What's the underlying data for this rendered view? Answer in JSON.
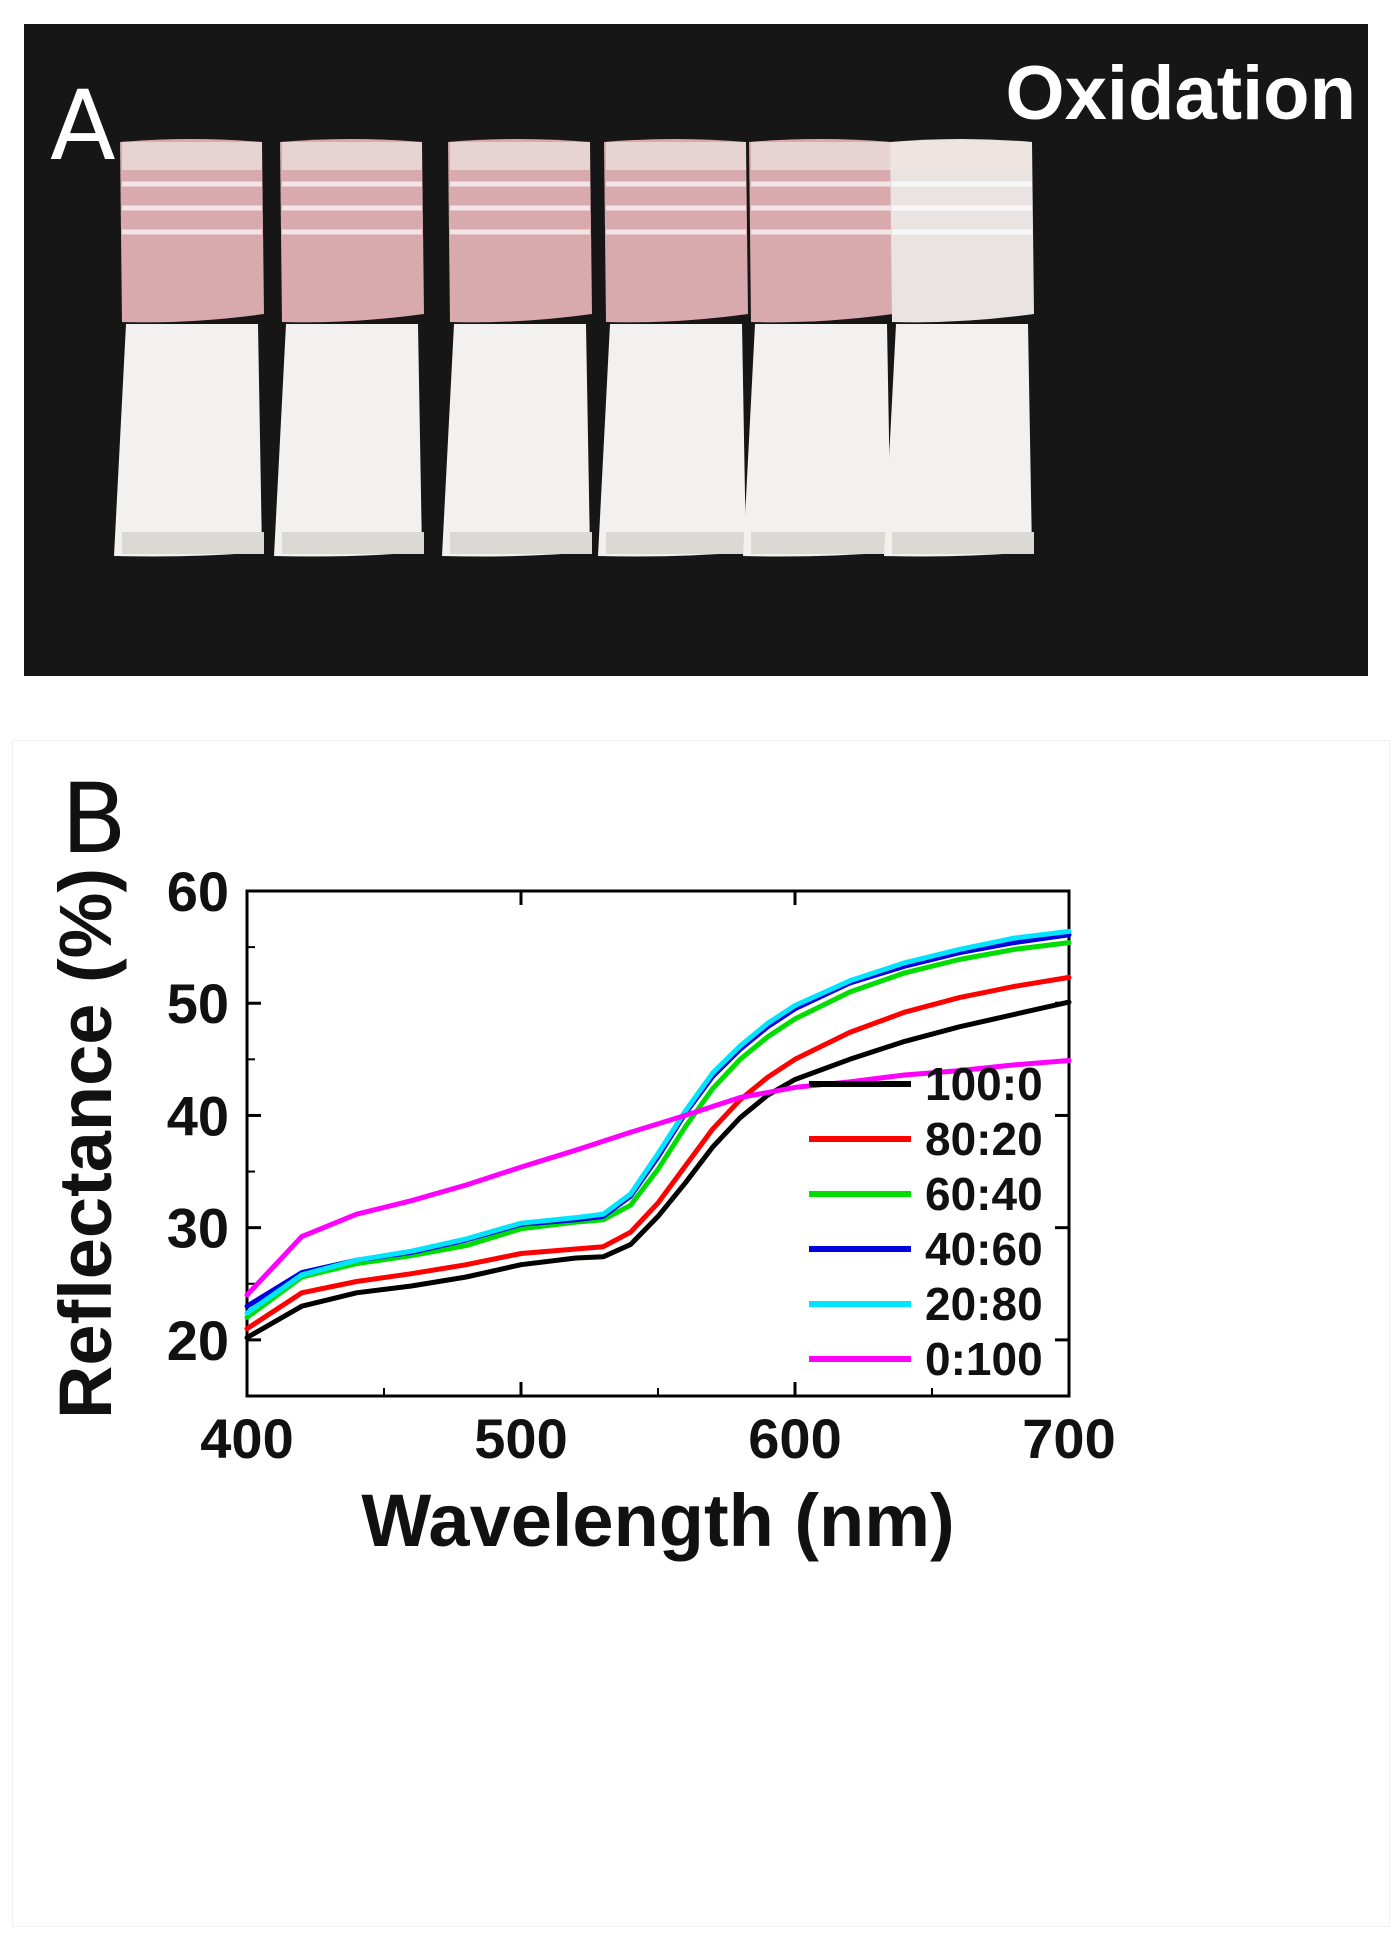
{
  "panel_a": {
    "letter": "A",
    "title": "Oxidation",
    "samples": [
      {
        "color": "#d8a9ad"
      },
      {
        "color": "#d8a9ad"
      },
      {
        "color": "#d8a9ad"
      },
      {
        "color": "#d8a9ad"
      },
      {
        "color": "#d8a9ad"
      },
      {
        "color": "#e9e4e1"
      }
    ]
  },
  "panel_b": {
    "letter": "B"
  },
  "chart_data": {
    "type": "line",
    "title": "",
    "xlabel": "Wavelength (nm)",
    "ylabel": "Reflectance (%)",
    "xlim": [
      400,
      700
    ],
    "ylim": [
      15,
      60
    ],
    "xticks": [
      400,
      500,
      600,
      700
    ],
    "yticks": [
      20,
      30,
      40,
      50,
      60
    ],
    "grid": false,
    "legend_position": "bottom-right",
    "series": [
      {
        "name": "100:0",
        "color": "#000000",
        "x": [
          400,
          420,
          440,
          460,
          480,
          500,
          520,
          530,
          540,
          550,
          560,
          570,
          580,
          590,
          600,
          620,
          640,
          660,
          680,
          700
        ],
        "y": [
          20.2,
          23.0,
          24.2,
          24.8,
          25.6,
          26.7,
          27.3,
          27.4,
          28.5,
          31.0,
          34.0,
          37.2,
          39.8,
          41.8,
          43.2,
          45.0,
          46.6,
          47.9,
          49.0,
          50.1
        ]
      },
      {
        "name": "80:20",
        "color": "#ff0000",
        "x": [
          400,
          420,
          440,
          460,
          480,
          500,
          520,
          530,
          540,
          550,
          560,
          570,
          580,
          590,
          600,
          620,
          640,
          660,
          680,
          700
        ],
        "y": [
          21.0,
          24.2,
          25.2,
          25.9,
          26.7,
          27.7,
          28.1,
          28.3,
          29.6,
          32.2,
          35.5,
          38.8,
          41.4,
          43.4,
          45.0,
          47.4,
          49.2,
          50.5,
          51.5,
          52.3
        ]
      },
      {
        "name": "60:40",
        "color": "#00dd00",
        "x": [
          400,
          420,
          440,
          460,
          480,
          500,
          520,
          530,
          540,
          550,
          560,
          570,
          580,
          590,
          600,
          620,
          640,
          660,
          680,
          700
        ],
        "y": [
          22.0,
          25.6,
          26.8,
          27.5,
          28.4,
          29.9,
          30.5,
          30.7,
          32.0,
          35.2,
          39.0,
          42.4,
          45.0,
          47.0,
          48.6,
          51.0,
          52.7,
          53.9,
          54.8,
          55.4
        ]
      },
      {
        "name": "40:60",
        "color": "#0000dd",
        "x": [
          400,
          420,
          440,
          460,
          480,
          500,
          520,
          530,
          540,
          550,
          560,
          570,
          580,
          590,
          600,
          620,
          640,
          660,
          680,
          700
        ],
        "y": [
          23.0,
          26.0,
          27.1,
          27.8,
          28.9,
          30.3,
          30.7,
          31.0,
          32.8,
          36.3,
          40.2,
          43.5,
          45.9,
          47.9,
          49.5,
          51.8,
          53.3,
          54.5,
          55.4,
          56.1
        ]
      },
      {
        "name": "20:80",
        "color": "#00e5ff",
        "x": [
          400,
          420,
          440,
          460,
          480,
          500,
          520,
          530,
          540,
          550,
          560,
          570,
          580,
          590,
          600,
          620,
          640,
          660,
          680,
          700
        ],
        "y": [
          22.4,
          25.8,
          27.1,
          27.9,
          29.0,
          30.4,
          30.9,
          31.2,
          33.0,
          36.6,
          40.4,
          43.8,
          46.2,
          48.2,
          49.8,
          52.0,
          53.6,
          54.8,
          55.8,
          56.4
        ]
      },
      {
        "name": "0:100",
        "color": "#ff00ff",
        "x": [
          400,
          420,
          440,
          460,
          480,
          500,
          520,
          540,
          560,
          580,
          600,
          620,
          640,
          660,
          680,
          700
        ],
        "y": [
          24.0,
          29.2,
          31.2,
          32.4,
          33.8,
          35.4,
          36.9,
          38.5,
          40.0,
          41.6,
          42.5,
          43.0,
          43.6,
          44.0,
          44.5,
          44.9
        ]
      }
    ]
  }
}
